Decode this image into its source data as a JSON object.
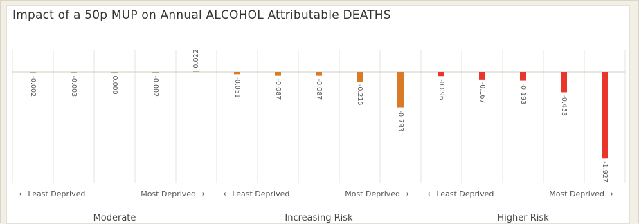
{
  "title": "Impact of a 50p MUP on Annual ALCOHOL Attributable DEATHS",
  "colors": {
    "moderate": "#b8b08c",
    "increasing": "#d97b26",
    "higher": "#e8362c",
    "grid": "#e6e4da",
    "baseline": "#cfcdc2",
    "text": "#555555"
  },
  "chart_data": {
    "type": "bar",
    "title": "Impact of a 50p MUP on Annual ALCOHOL Attributable DEATHS",
    "ylim": [
      -2.1,
      0.35
    ],
    "groups": [
      {
        "name": "Moderate",
        "color_key": "moderate",
        "least_label": "← Least Deprived",
        "most_label": "Most Deprived →",
        "values": [
          -0.002,
          -0.003,
          0.0,
          -0.002,
          0.022
        ],
        "labels": [
          "-0.002",
          "-0.003",
          "0.000",
          "-0.002",
          "0.022"
        ]
      },
      {
        "name": "Increasing Risk",
        "color_key": "increasing",
        "least_label": "← Least Deprived",
        "most_label": "Most Deprived →",
        "values": [
          -0.051,
          -0.087,
          -0.087,
          -0.215,
          -0.793
        ],
        "labels": [
          "-0.051",
          "-0.087",
          "-0.087",
          "-0.215",
          "-0.793"
        ]
      },
      {
        "name": "Higher Risk",
        "color_key": "higher",
        "least_label": "← Least Deprived",
        "most_label": "Most Deprived →",
        "values": [
          -0.096,
          -0.167,
          -0.193,
          -0.453,
          -1.927
        ],
        "labels": [
          "-0.096",
          "-0.167",
          "-0.193",
          "-0.453",
          "-1.927"
        ]
      }
    ]
  }
}
